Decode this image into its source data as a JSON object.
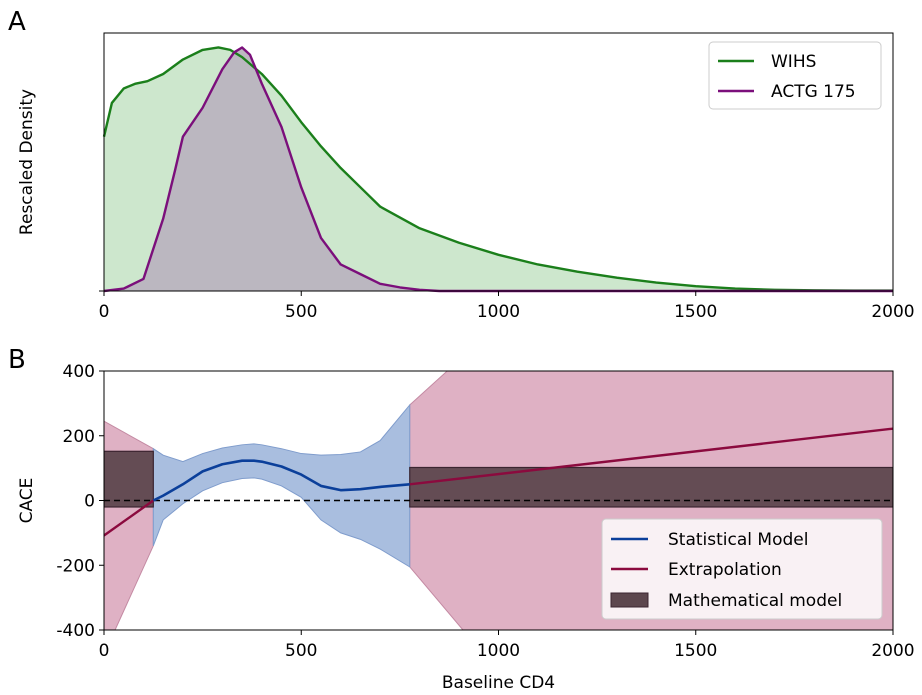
{
  "chart_data": [
    {
      "panel_label": "A",
      "type": "area",
      "ylabel": "Rescaled Density",
      "xlabel": "",
      "xlim": [
        0,
        2000
      ],
      "ylim": [
        0,
        1.07
      ],
      "xticks": [
        "0",
        "500",
        "1000",
        "1500",
        "2000"
      ],
      "legend_position": "top-right",
      "series": [
        {
          "name": "WIHS",
          "color": "#1b7f1b",
          "fill_color": "#cde7cd",
          "x": [
            0,
            20,
            50,
            80,
            110,
            150,
            200,
            250,
            290,
            320,
            350,
            400,
            450,
            500,
            550,
            600,
            650,
            700,
            800,
            900,
            1000,
            1100,
            1200,
            1300,
            1400,
            1500,
            1600,
            1700,
            1800,
            1900,
            2000
          ],
          "y": [
            0.64,
            0.78,
            0.84,
            0.86,
            0.87,
            0.9,
            0.96,
            1.0,
            1.01,
            1.0,
            0.97,
            0.9,
            0.81,
            0.7,
            0.6,
            0.51,
            0.43,
            0.35,
            0.26,
            0.2,
            0.15,
            0.11,
            0.08,
            0.055,
            0.035,
            0.02,
            0.01,
            0.005,
            0.003,
            0.002,
            0.002
          ]
        },
        {
          "name": "ACTG 175",
          "color": "#7b0f7b",
          "fill_color": "#b9b4bf",
          "x": [
            0,
            50,
            100,
            150,
            180,
            200,
            250,
            300,
            330,
            350,
            370,
            400,
            450,
            500,
            550,
            600,
            650,
            700,
            750,
            800,
            850,
            900,
            2000
          ],
          "y": [
            0.0,
            0.01,
            0.05,
            0.3,
            0.5,
            0.64,
            0.76,
            0.92,
            0.99,
            1.01,
            0.98,
            0.86,
            0.68,
            0.43,
            0.22,
            0.11,
            0.07,
            0.03,
            0.015,
            0.005,
            0.0,
            0.0,
            0.0
          ]
        }
      ]
    },
    {
      "panel_label": "B",
      "type": "line",
      "ylabel": "CACE",
      "xlabel": "Baseline CD4",
      "xlim": [
        0,
        2000
      ],
      "ylim": [
        -400,
        400
      ],
      "xticks": [
        "0",
        "500",
        "1000",
        "1500",
        "2000"
      ],
      "yticks": [
        "400",
        "200",
        "0",
        "-200",
        "-400"
      ],
      "legend_position": "bottom-right",
      "zero_line": "dashed",
      "series": [
        {
          "name": "Statistical Model",
          "color": "#0b3f9a",
          "band_color": "#a9bedf",
          "x": [
            125,
            150,
            200,
            250,
            300,
            350,
            380,
            400,
            450,
            500,
            550,
            600,
            650,
            700,
            775
          ],
          "y": [
            0,
            15,
            50,
            90,
            112,
            123,
            123,
            120,
            105,
            80,
            45,
            32,
            35,
            42,
            50
          ],
          "upper": [
            160,
            140,
            120,
            145,
            162,
            172,
            175,
            172,
            160,
            145,
            140,
            142,
            150,
            185,
            295
          ],
          "lower": [
            -140,
            -60,
            -10,
            30,
            55,
            68,
            70,
            66,
            45,
            10,
            -60,
            -100,
            -120,
            -150,
            -205
          ]
        },
        {
          "name": "Extrapolation",
          "color": "#8b0a3e",
          "band_color": "#dfb1c4",
          "segments": [
            {
              "x": [
                0,
                125
              ],
              "y": [
                -108,
                0
              ],
              "upper": [
                245,
                160
              ],
              "lower": [
                -400,
                -140
              ],
              "lower_x": [
                28,
                125
              ]
            },
            {
              "x": [
                775,
                2000
              ],
              "y": [
                50,
                222
              ],
              "upper": [
                295,
                400
              ],
              "upper_x": [
                775,
                870
              ],
              "lower": [
                -205,
                -400
              ],
              "lower_x": [
                775,
                910
              ]
            }
          ]
        },
        {
          "name": "Mathematical model",
          "color": "#3b2530",
          "fill_color": "#5d474e",
          "rects": [
            {
              "x0": 0,
              "x1": 125,
              "y0": -20,
              "y1": 152
            },
            {
              "x0": 775,
              "x1": 2000,
              "y0": -20,
              "y1": 102
            }
          ]
        }
      ]
    }
  ]
}
